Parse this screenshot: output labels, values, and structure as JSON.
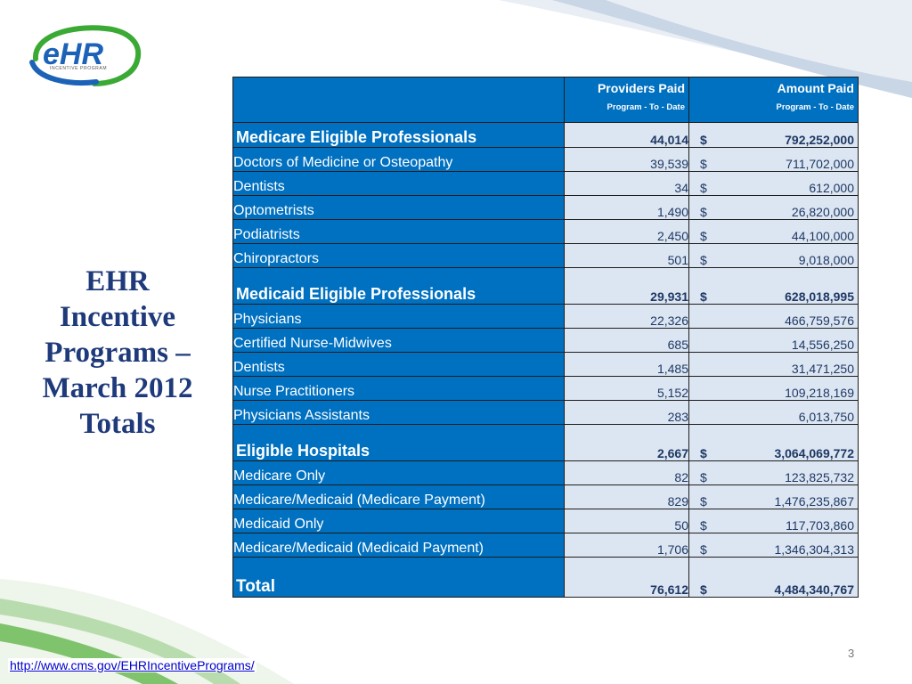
{
  "logo": {
    "wordmark": "eHR",
    "subtext": "INCENTIVE PROGRAM"
  },
  "title_lines": [
    "EHR",
    "Incentive",
    "Programs –",
    "March 2012",
    "Totals"
  ],
  "table": {
    "header": {
      "providers_main": "Providers Paid",
      "providers_sub": "Program - To - Date",
      "amount_main": "Amount Paid",
      "amount_sub": "Program - To - Date"
    },
    "rows": [
      {
        "name": "Medicare Eligible Professionals",
        "providers": "44,014",
        "currency": "$",
        "amount": "792,252,000"
      },
      {
        "name": "Doctors of Medicine or Osteopathy",
        "providers": "39,539",
        "currency": "$",
        "amount": "711,702,000"
      },
      {
        "name": "Dentists",
        "providers": "34",
        "currency": "$",
        "amount": "612,000"
      },
      {
        "name": "Optometrists",
        "providers": "1,490",
        "currency": "$",
        "amount": "26,820,000"
      },
      {
        "name": "Podiatrists",
        "providers": "2,450",
        "currency": "$",
        "amount": "44,100,000"
      },
      {
        "name": "Chiropractors",
        "providers": "501",
        "currency": "$",
        "amount": "9,018,000"
      },
      {
        "name": "Medicaid Eligible Professionals",
        "providers": "29,931",
        "currency": "$",
        "amount": "628,018,995"
      },
      {
        "name": "Physicians",
        "providers": "22,326",
        "currency": "",
        "amount": "466,759,576"
      },
      {
        "name": "Certified Nurse-Midwives",
        "providers": "685",
        "currency": "",
        "amount": "14,556,250"
      },
      {
        "name": "Dentists",
        "providers": "1,485",
        "currency": "",
        "amount": "31,471,250"
      },
      {
        "name": "Nurse Practitioners",
        "providers": "5,152",
        "currency": "",
        "amount": "109,218,169"
      },
      {
        "name": "Physicians Assistants",
        "providers": "283",
        "currency": "",
        "amount": "6,013,750"
      },
      {
        "name": "Eligible Hospitals",
        "providers": "2,667",
        "currency": "$",
        "amount": "3,064,069,772"
      },
      {
        "name": "Medicare Only",
        "providers": "82",
        "currency": "$",
        "amount": "123,825,732"
      },
      {
        "name": "Medicare/Medicaid (Medicare Payment)",
        "providers": "829",
        "currency": "$",
        "amount": "1,476,235,867"
      },
      {
        "name": "Medicaid Only",
        "providers": "50",
        "currency": "$",
        "amount": "117,703,860"
      },
      {
        "name": "Medicare/Medicaid (Medicaid Payment)",
        "providers": "1,706",
        "currency": "$",
        "amount": "1,346,304,313"
      },
      {
        "name": "Total",
        "providers": "76,612",
        "currency": "$",
        "amount": "4,484,340,767"
      }
    ]
  },
  "page_number": "3",
  "footer_link": "http://www.cms.gov/EHRIncentivePrograms/",
  "colors": {
    "header_blue": "#0070c0",
    "value_cell_bg": "#dce6f2",
    "title_navy": "#1f3a7a",
    "logo_green": "#3aaa35",
    "logo_blue": "#1c63b7"
  }
}
